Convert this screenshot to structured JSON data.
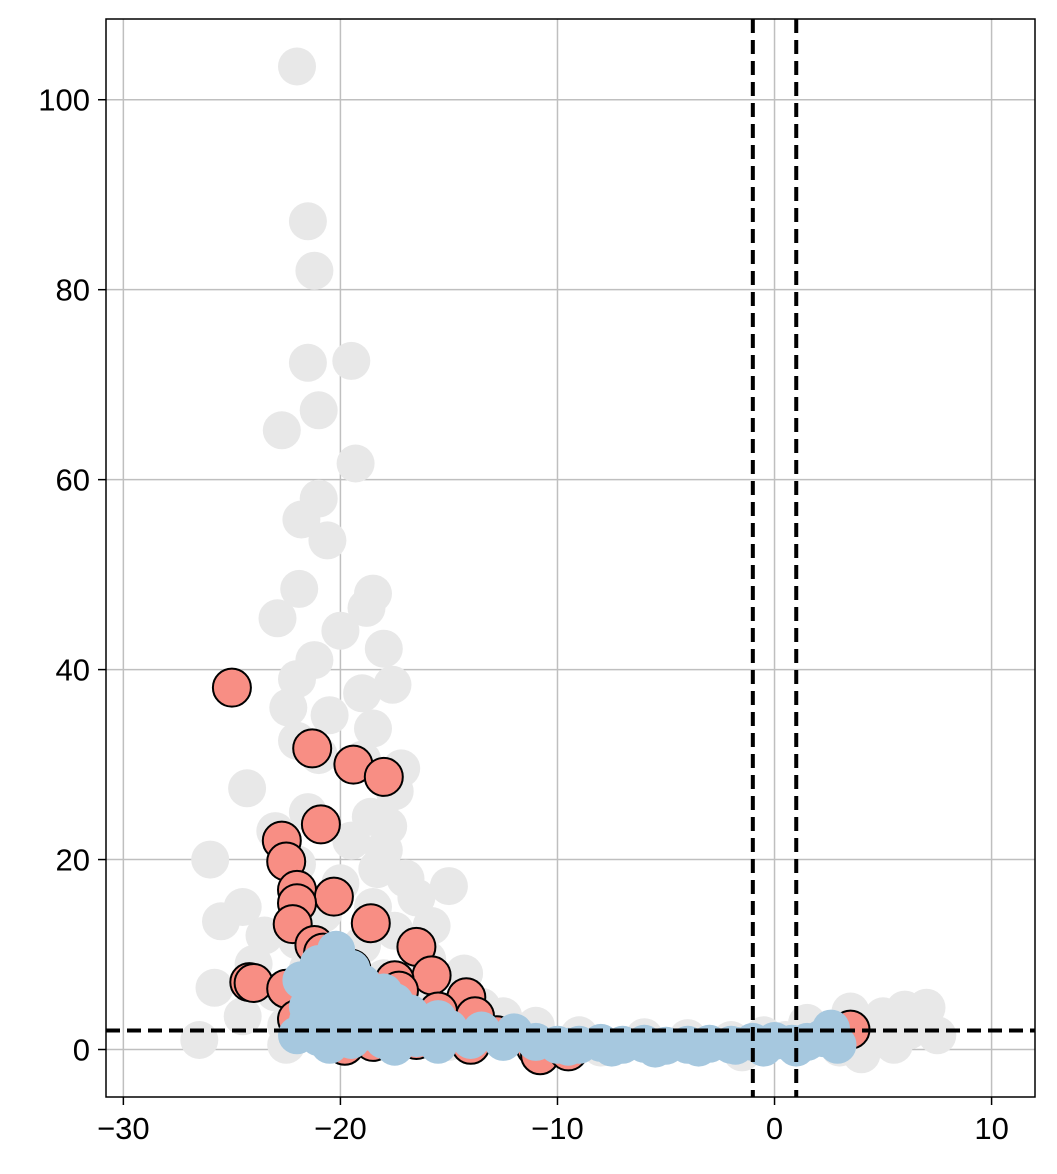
{
  "chart_data": {
    "type": "scatter",
    "title": "",
    "xlabel": "",
    "ylabel": "",
    "xlim": [
      -30.8,
      12
    ],
    "ylim": [
      -5,
      108.5
    ],
    "grid": true,
    "x_ticks": [
      -30,
      -20,
      -10,
      0,
      10
    ],
    "x_tick_labels": [
      "−30",
      "−20",
      "−10",
      "0",
      "10"
    ],
    "y_ticks": [
      0,
      20,
      40,
      60,
      80,
      100
    ],
    "y_tick_labels": [
      "0",
      "20",
      "40",
      "60",
      "80",
      "100"
    ],
    "threshold_lines": {
      "x": [
        -1,
        1
      ],
      "y": [
        2
      ],
      "style": "dashed",
      "color": "#000000"
    },
    "colors": {
      "grid": "#bfbfbf",
      "background_points": "#e8e8e8",
      "highlight_points": "#f88e84",
      "highlight_edge": "#000000",
      "blue_points": "#a6c8df"
    },
    "series": [
      {
        "color_role": "background_points",
        "points": [
          [
            -22,
            103.5
          ],
          [
            -21.5,
            87.2
          ],
          [
            -21.2,
            82
          ],
          [
            -21.5,
            72.3
          ],
          [
            -19.5,
            72.5
          ],
          [
            -21,
            67.3
          ],
          [
            -22.7,
            65.2
          ],
          [
            -19.3,
            61.7
          ],
          [
            -21,
            58
          ],
          [
            -21.8,
            55.8
          ],
          [
            -20.6,
            53.6
          ],
          [
            -21.9,
            48.5
          ],
          [
            -18.5,
            48
          ],
          [
            -18.8,
            46.5
          ],
          [
            -22.9,
            45.4
          ],
          [
            -20,
            44.1
          ],
          [
            -18,
            42.2
          ],
          [
            -21.2,
            41
          ],
          [
            -22,
            39
          ],
          [
            -17.6,
            38.4
          ],
          [
            -19,
            37.5
          ],
          [
            -22.4,
            36
          ],
          [
            -20.5,
            35.2
          ],
          [
            -18.5,
            33.8
          ],
          [
            -22,
            32.5
          ],
          [
            -21,
            31
          ],
          [
            -19,
            30.5
          ],
          [
            -17.2,
            29.6
          ],
          [
            -24.3,
            27.5
          ],
          [
            -17.5,
            27.2
          ],
          [
            -21.5,
            25
          ],
          [
            -18.6,
            24.5
          ],
          [
            -17.8,
            23.5
          ],
          [
            -23,
            23
          ],
          [
            -19.5,
            22
          ],
          [
            -18,
            21
          ],
          [
            -26,
            20
          ],
          [
            -22,
            19.5
          ],
          [
            -18.3,
            19
          ],
          [
            -17,
            18
          ],
          [
            -20,
            17.5
          ],
          [
            -15,
            17.2
          ],
          [
            -16.5,
            16
          ],
          [
            -24.5,
            15
          ],
          [
            -18.5,
            15
          ],
          [
            -20.8,
            14.3
          ],
          [
            -25.5,
            13.5
          ],
          [
            -15.8,
            13
          ],
          [
            -17.5,
            12.5
          ],
          [
            -23.5,
            12
          ],
          [
            -22,
            11.5
          ],
          [
            -19,
            11
          ],
          [
            -16,
            9.5
          ],
          [
            -24,
            9
          ],
          [
            -21.5,
            8.5
          ],
          [
            -14.3,
            8
          ],
          [
            -18,
            7.5
          ],
          [
            -25.8,
            6.5
          ],
          [
            -23,
            6
          ],
          [
            -16.5,
            5.5
          ],
          [
            -20,
            5
          ],
          [
            -13.5,
            4.5
          ],
          [
            -12.5,
            3.5
          ],
          [
            -24.5,
            3.5
          ],
          [
            -22.5,
            2.5
          ],
          [
            -11,
            2.5
          ],
          [
            -19,
            2
          ],
          [
            -9,
            1.5
          ],
          [
            -6,
            1.3
          ],
          [
            -4,
            1.2
          ],
          [
            -2,
            1
          ],
          [
            -0.5,
            1.5
          ],
          [
            0.5,
            1
          ],
          [
            2,
            1.5
          ],
          [
            3.5,
            4
          ],
          [
            5,
            3.5
          ],
          [
            6,
            4.2
          ],
          [
            7,
            4.4
          ],
          [
            4.2,
            2.5
          ],
          [
            6.2,
            2
          ],
          [
            5.5,
            0.5
          ],
          [
            7.5,
            1.5
          ],
          [
            4,
            -0.5
          ],
          [
            3,
            0.2
          ],
          [
            -22.5,
            0.5
          ],
          [
            -15,
            0.8
          ],
          [
            -8,
            0.2
          ],
          [
            1.5,
            2.8
          ],
          [
            -26.5,
            1
          ],
          [
            -1.5,
            -0.3
          ]
        ]
      },
      {
        "color_role": "highlight_points",
        "points": [
          [
            -25,
            38.1
          ],
          [
            -21.3,
            31.7
          ],
          [
            -19.4,
            30
          ],
          [
            -18,
            28.7
          ],
          [
            -20.9,
            23.7
          ],
          [
            -22.7,
            22
          ],
          [
            -22.5,
            19.8
          ],
          [
            -22,
            16.8
          ],
          [
            -20.3,
            16.1
          ],
          [
            -22,
            15.4
          ],
          [
            -18.6,
            13.3
          ],
          [
            -22.2,
            13.2
          ],
          [
            -21.2,
            11
          ],
          [
            -20.8,
            10.2
          ],
          [
            -16.5,
            10.8
          ],
          [
            -19.5,
            8.5
          ],
          [
            -15.8,
            7.8
          ],
          [
            -24.2,
            7.1
          ],
          [
            -24,
            7
          ],
          [
            -22.5,
            6.4
          ],
          [
            -17.5,
            7.3
          ],
          [
            -17.3,
            6.2
          ],
          [
            -14.2,
            5.5
          ],
          [
            -20.5,
            4.5
          ],
          [
            -15.5,
            4
          ],
          [
            -13.8,
            3.5
          ],
          [
            -22,
            3.2
          ],
          [
            -21.5,
            2.5
          ],
          [
            -19,
            2.2
          ],
          [
            -17,
            1.8
          ],
          [
            -12.8,
            1.5
          ],
          [
            -16.5,
            1
          ],
          [
            -18.5,
            0.8
          ],
          [
            -14,
            0.5
          ],
          [
            -11,
            0.2
          ],
          [
            -10.8,
            -0.6
          ],
          [
            -9.5,
            -0.2
          ],
          [
            3.5,
            2.1
          ],
          [
            -20.8,
            1.5
          ],
          [
            -19.8,
            0.4
          ]
        ]
      },
      {
        "color_role": "blue_points",
        "points": [
          [
            -20.2,
            10.5
          ],
          [
            -21,
            9
          ],
          [
            -19.5,
            8.5
          ],
          [
            -21.8,
            7.3
          ],
          [
            -19,
            7
          ],
          [
            -20.6,
            6.5
          ],
          [
            -18,
            6
          ],
          [
            -21.2,
            5.5
          ],
          [
            -19.5,
            5.5
          ],
          [
            -17.5,
            5
          ],
          [
            -21.5,
            4.5
          ],
          [
            -20,
            4
          ],
          [
            -18.5,
            4
          ],
          [
            -16.8,
            3.8
          ],
          [
            -15.5,
            3.2
          ],
          [
            -21.5,
            3
          ],
          [
            -20,
            2.5
          ],
          [
            -18.5,
            2.5
          ],
          [
            -17,
            2.4
          ],
          [
            -15,
            2.2
          ],
          [
            -13.5,
            2
          ],
          [
            -12,
            1.8
          ],
          [
            -22,
            1.5
          ],
          [
            -21,
            1.3
          ],
          [
            -19.5,
            1
          ],
          [
            -18,
            1
          ],
          [
            -16.5,
            1.2
          ],
          [
            -14,
            1
          ],
          [
            -12.5,
            0.8
          ],
          [
            -11,
            0.8
          ],
          [
            -10,
            0.5
          ],
          [
            -9,
            0.5
          ],
          [
            -8,
            0.7
          ],
          [
            -7,
            0.5
          ],
          [
            -6,
            0.6
          ],
          [
            -5,
            0.4
          ],
          [
            -4,
            0.5
          ],
          [
            -3,
            0.6
          ],
          [
            -2,
            0.5
          ],
          [
            -1,
            0.8
          ],
          [
            0,
            0.9
          ],
          [
            0.8,
            0.6
          ],
          [
            1.5,
            0.8
          ],
          [
            2.2,
            1.2
          ],
          [
            2.6,
            2.2
          ],
          [
            2.9,
            0.5
          ],
          [
            1,
            0.2
          ],
          [
            -0.5,
            0.2
          ],
          [
            -1.8,
            0.4
          ],
          [
            -3.5,
            0.2
          ],
          [
            -5.5,
            0.1
          ],
          [
            -7.5,
            0.2
          ],
          [
            -9.5,
            0.3
          ],
          [
            -15.5,
            0.5
          ],
          [
            -17.5,
            0.3
          ],
          [
            -20.5,
            0.5
          ],
          [
            -19,
            1.8
          ],
          [
            -20.7,
            2.8
          ],
          [
            -18,
            3.2
          ],
          [
            -16,
            1.8
          ]
        ]
      }
    ]
  }
}
